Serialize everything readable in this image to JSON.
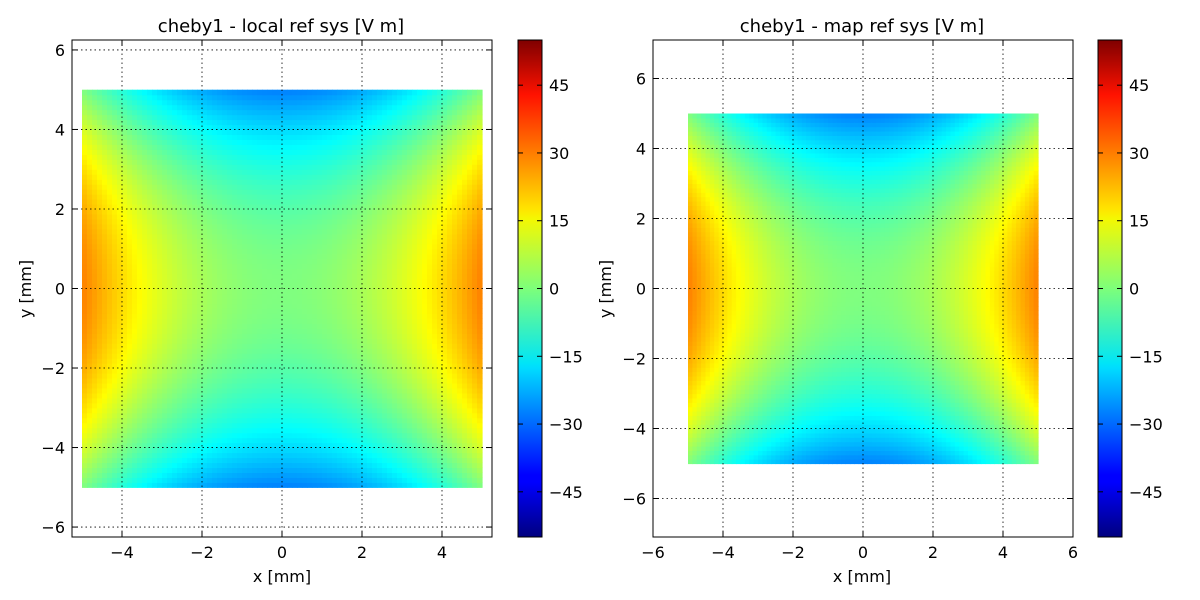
{
  "chart_data": [
    {
      "type": "heatmap",
      "title": "cheby1 - local ref sys [V m]",
      "xlabel": "x [mm]",
      "ylabel": "y [mm]",
      "xlim": [
        -5.25,
        5.25
      ],
      "ylim": [
        -6.25,
        6.25
      ],
      "xticks": [
        -4,
        -2,
        0,
        2,
        4
      ],
      "yticks": [
        -6,
        -4,
        -2,
        0,
        2,
        4,
        6
      ],
      "grid": true,
      "data_extent": {
        "x": [
          -5,
          5
        ],
        "y": [
          -5,
          5
        ]
      },
      "field": "V(x,y) = 1.1*(x^2 - y^2)",
      "colorbar": {
        "min": -55,
        "max": 55,
        "ticks": [
          -45,
          -30,
          -15,
          0,
          15,
          30,
          45
        ],
        "colormap": "jet"
      }
    },
    {
      "type": "heatmap",
      "title": "cheby1 - map ref sys [V m]",
      "xlabel": "x [mm]",
      "ylabel": "y [mm]",
      "xlim": [
        -6,
        6
      ],
      "ylim": [
        -7.1,
        7.1
      ],
      "xticks": [
        -6,
        -4,
        -2,
        0,
        2,
        4,
        6
      ],
      "yticks": [
        -6,
        -4,
        -2,
        0,
        2,
        4,
        6
      ],
      "grid": true,
      "data_extent": {
        "x": [
          -5,
          5
        ],
        "y": [
          -5,
          5
        ]
      },
      "field": "V(x,y) = 1.1*(x^2 - y^2)",
      "colorbar": {
        "min": -55,
        "max": 55,
        "ticks": [
          -45,
          -30,
          -15,
          0,
          15,
          30,
          45
        ],
        "colormap": "jet"
      }
    }
  ]
}
